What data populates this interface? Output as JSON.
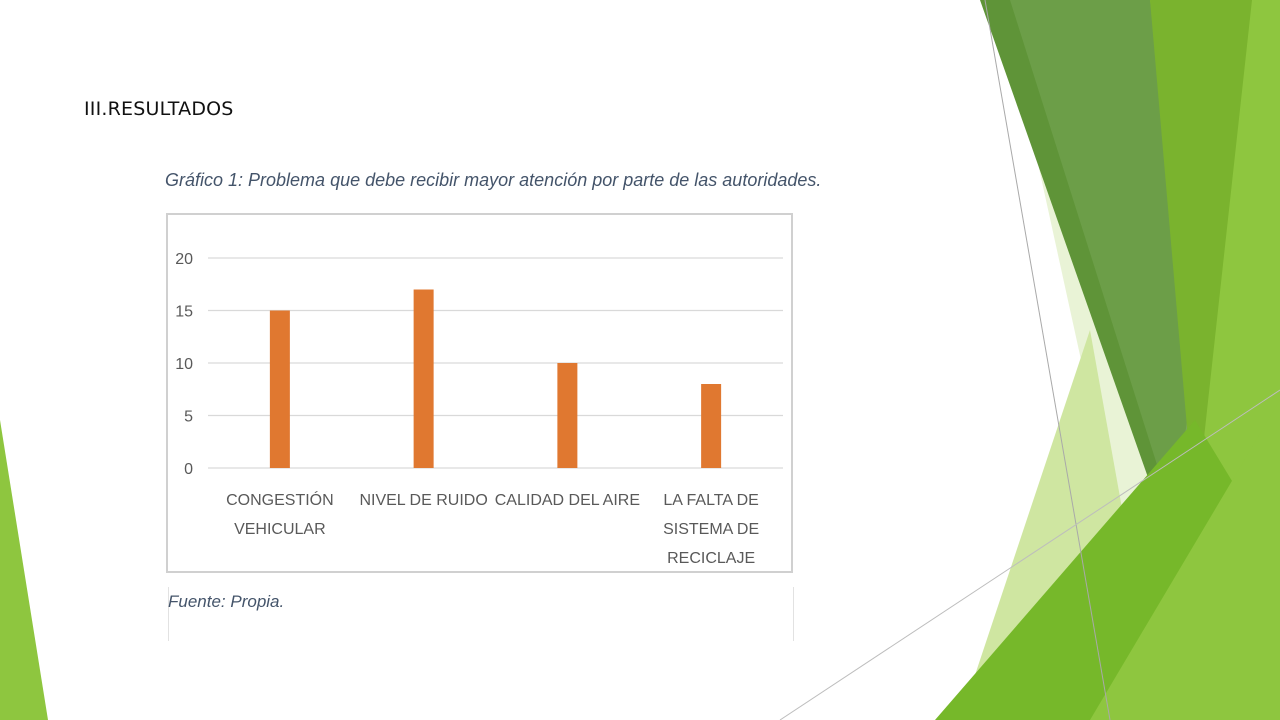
{
  "slide": {
    "heading": "III.RESULTADOS",
    "source": "Fuente: Propia.",
    "theme_colors": {
      "green_dark": "#5f9438",
      "green_mid": "#76b82a",
      "green_bright": "#8ec63f",
      "green_light": "#cfe6a1",
      "green_pale": "#e9f3d6"
    }
  },
  "chart_data": {
    "type": "bar",
    "title": "Gráfico 1: Problema que debe recibir mayor atención por parte de las autoridades.",
    "categories": [
      "CONGESTIÓN VEHICULAR",
      "NIVEL DE RUIDO",
      "CALIDAD DEL AIRE",
      "LA FALTA DE SISTEMA DE RECICLAJE"
    ],
    "category_lines": [
      [
        "CONGESTIÓN",
        "VEHICULAR"
      ],
      [
        "NIVEL DE RUIDO"
      ],
      [
        "CALIDAD DEL AIRE"
      ],
      [
        "LA FALTA DE",
        "SISTEMA DE",
        "RECICLAJE"
      ]
    ],
    "values": [
      15,
      17,
      10,
      8
    ],
    "ylim": [
      0,
      20
    ],
    "yticks": [
      0,
      5,
      10,
      15,
      20
    ],
    "bar_color": "#e07830",
    "grid": true,
    "legend": "none",
    "xlabel": "",
    "ylabel": ""
  }
}
